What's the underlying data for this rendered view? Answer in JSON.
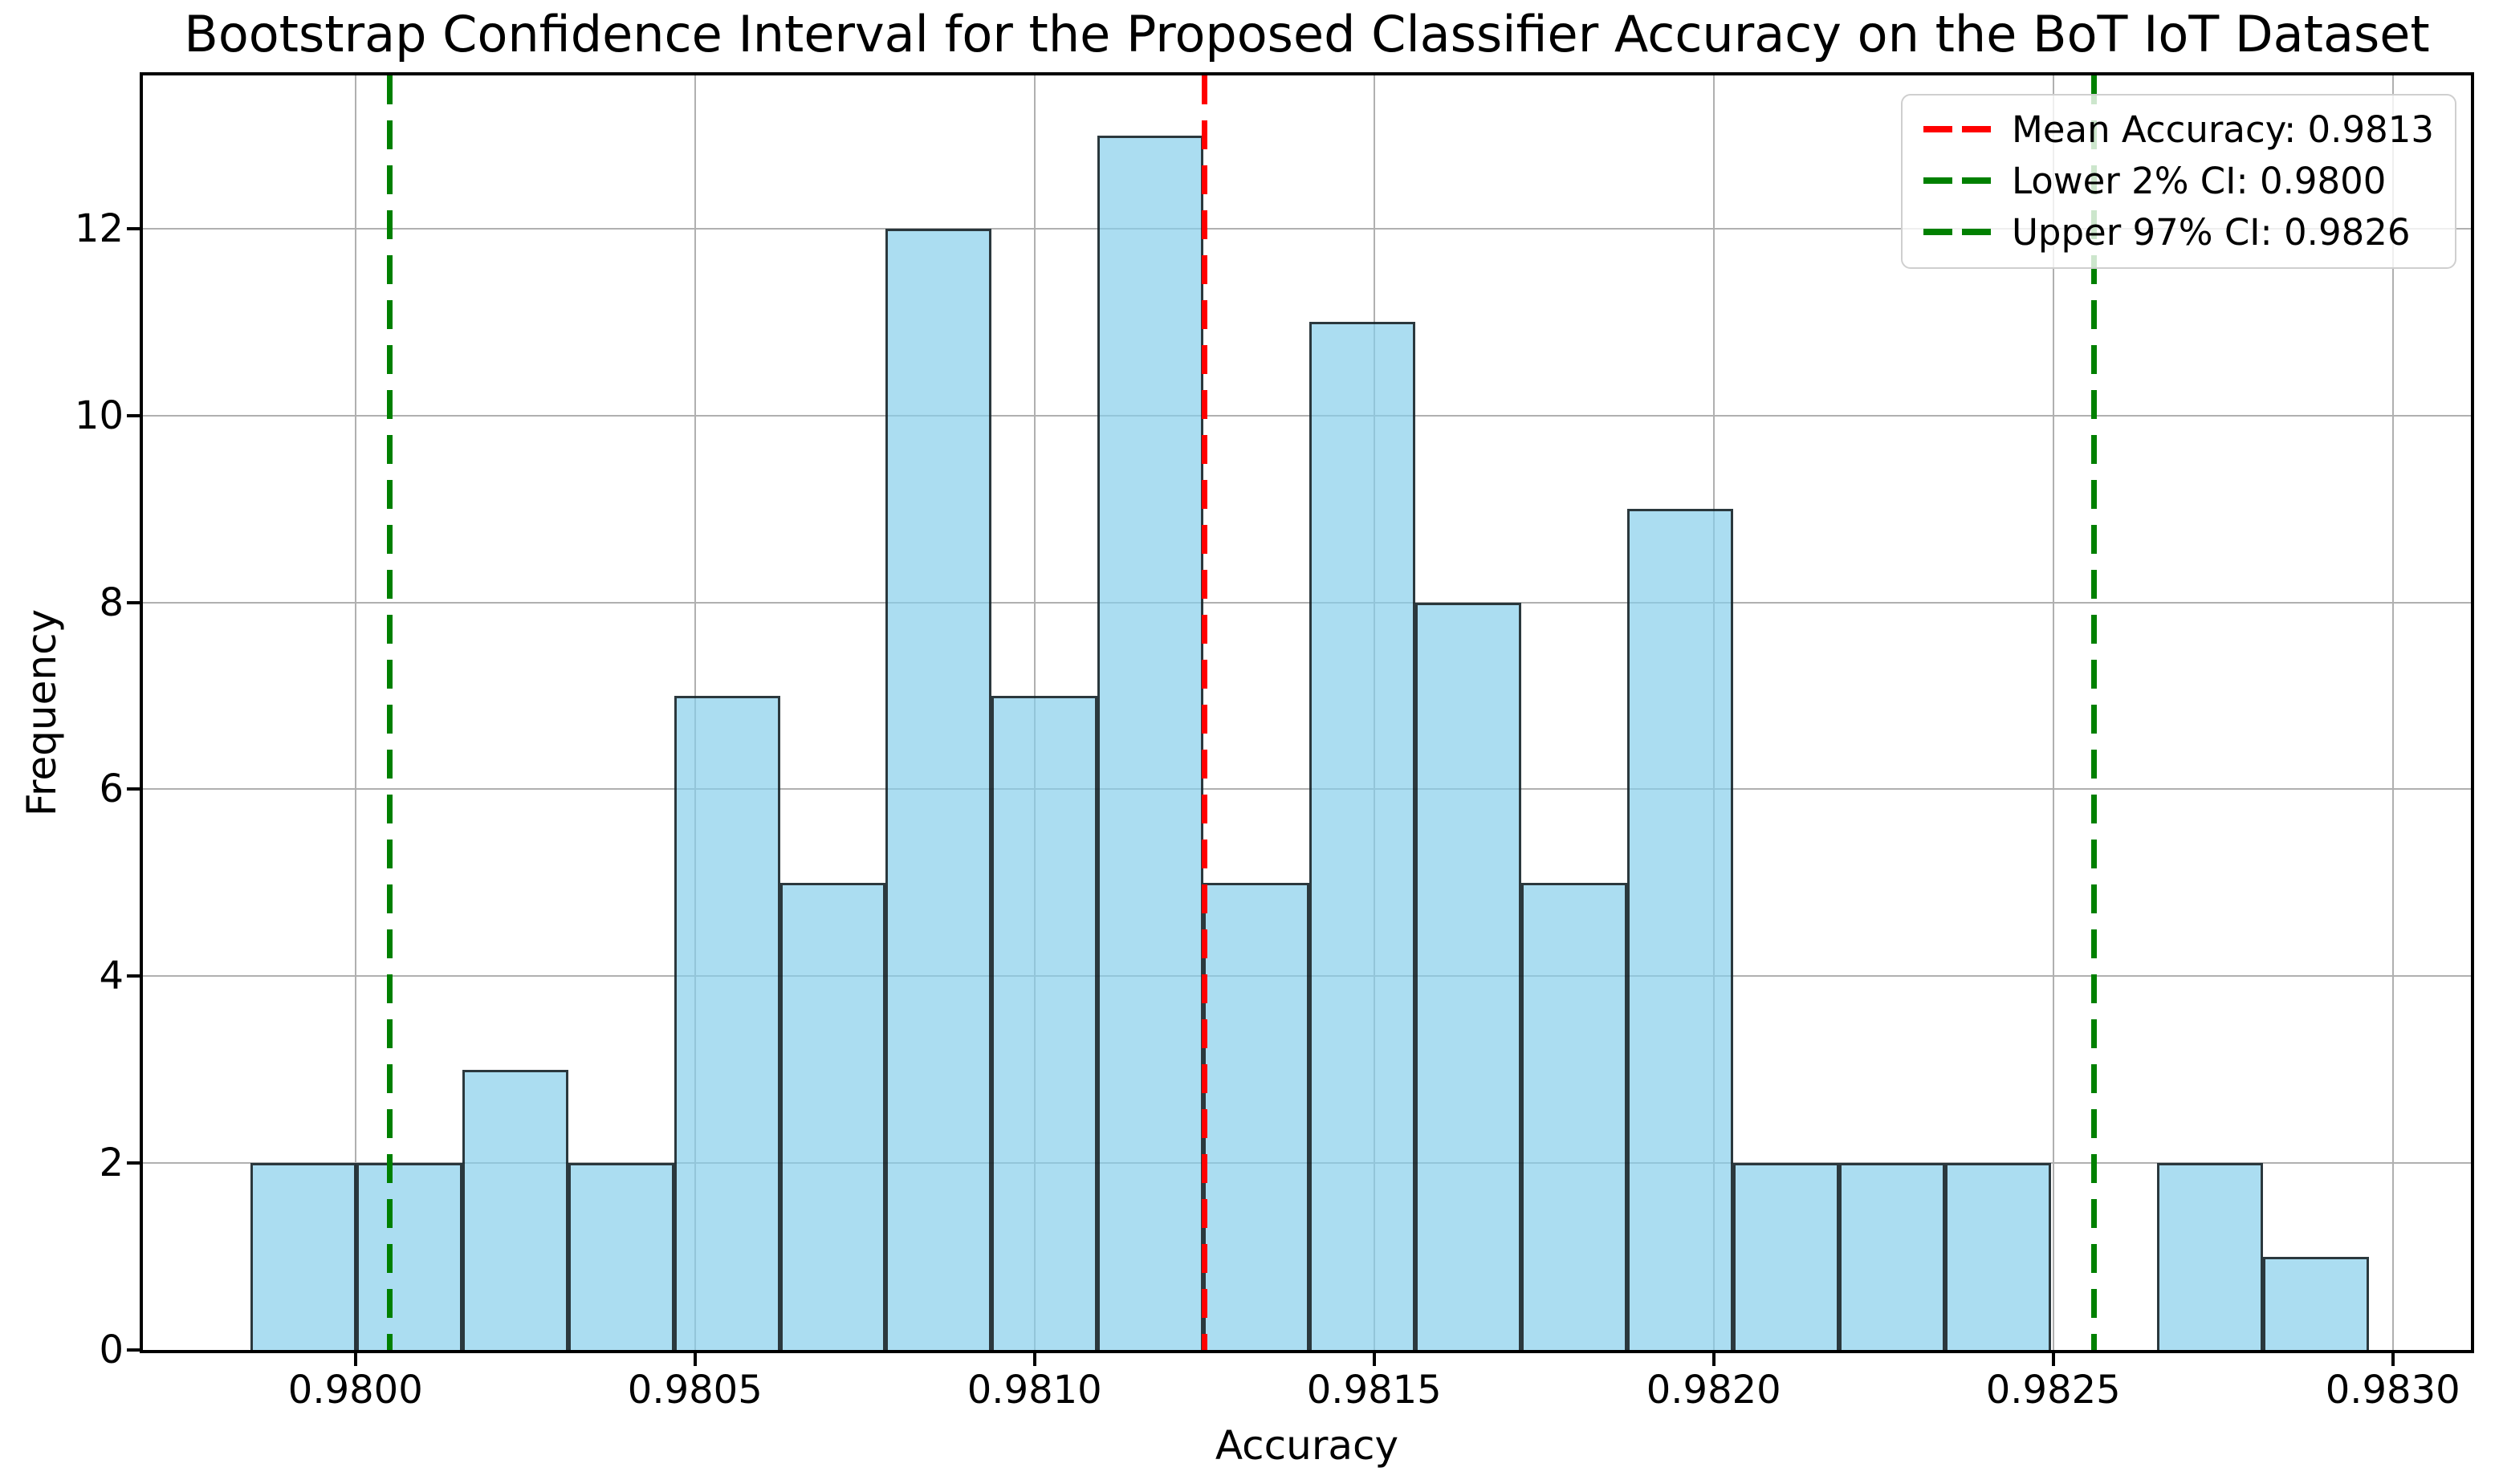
{
  "chart_data": {
    "type": "bar",
    "subtype": "histogram",
    "title": "Bootstrap Confidence Interval for the Proposed Classifier Accuracy on the BoT IoT Dataset",
    "xlabel": "Accuracy",
    "ylabel": "Frequency",
    "xlim": [
      0.979687,
      0.983115
    ],
    "ylim": [
      0,
      13.64
    ],
    "grid": true,
    "legend_position": "upper-right",
    "bins": {
      "start": 0.979845,
      "width": 0.000156,
      "counts": [
        2,
        2,
        3,
        2,
        7,
        5,
        12,
        7,
        13,
        5,
        11,
        8,
        5,
        9,
        2,
        2,
        2,
        0,
        2,
        1
      ]
    },
    "total_samples": 100,
    "x_ticks": [
      {
        "value": 0.98,
        "label": "0.9800"
      },
      {
        "value": 0.9805,
        "label": "0.9805"
      },
      {
        "value": 0.981,
        "label": "0.9810"
      },
      {
        "value": 0.9815,
        "label": "0.9815"
      },
      {
        "value": 0.982,
        "label": "0.9820"
      },
      {
        "value": 0.9825,
        "label": "0.9825"
      },
      {
        "value": 0.983,
        "label": "0.9830"
      }
    ],
    "y_ticks": [
      {
        "value": 0,
        "label": "0"
      },
      {
        "value": 2,
        "label": "2"
      },
      {
        "value": 4,
        "label": "4"
      },
      {
        "value": 6,
        "label": "6"
      },
      {
        "value": 8,
        "label": "8"
      },
      {
        "value": 10,
        "label": "10"
      },
      {
        "value": 12,
        "label": "12"
      }
    ],
    "reference_lines": [
      {
        "id": "mean",
        "value": 0.98125,
        "color": "#ff0000",
        "legend_label": "Mean Accuracy: 0.9813"
      },
      {
        "id": "lower-ci",
        "value": 0.98005,
        "color": "#008000",
        "legend_label": "Lower 2% CI: 0.9800"
      },
      {
        "id": "upper-ci",
        "value": 0.98256,
        "color": "#008000",
        "legend_label": "Upper 97% CI: 0.9826"
      }
    ],
    "colors": {
      "bar_fill": "#87CEEB",
      "bar_fill_alpha": 0.7,
      "bar_edge": "#000000",
      "bar_edge_alpha": 0.75,
      "grid": "#b0b0b0",
      "spine": "#000000",
      "text": "#000000",
      "legend_border": "#cfcfcf",
      "legend_bg": "#ffffff",
      "legend_bg_alpha": 0.8
    }
  }
}
